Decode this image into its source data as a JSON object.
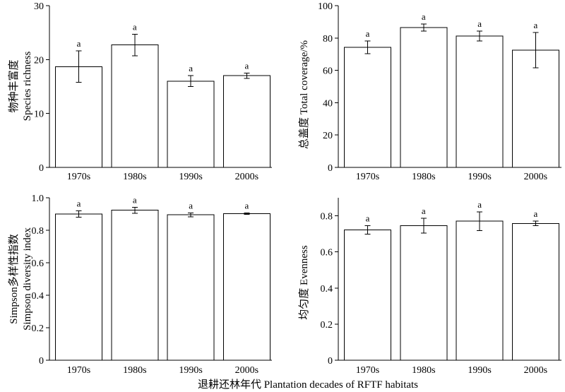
{
  "figure": {
    "xlabel": "退耕还林年代 Plantation decades of RFTF habitats"
  },
  "chart_data": [
    {
      "type": "bar",
      "categories": [
        "1970s",
        "1980s",
        "1990s",
        "2000s"
      ],
      "values": [
        18.7,
        22.7,
        16.0,
        17.0
      ],
      "errors": [
        2.9,
        2.0,
        1.0,
        0.5
      ],
      "letters": [
        "a",
        "a",
        "a",
        "a"
      ],
      "ylabel": [
        "物种丰富度",
        "Species richness"
      ],
      "ylim": [
        0,
        30
      ],
      "ytick_labels": [
        "0",
        "10",
        "20",
        "30"
      ],
      "grid": false,
      "bar_fill": "#ffffff",
      "bar_edge": "#000000"
    },
    {
      "type": "bar",
      "categories": [
        "1970s",
        "1980s",
        "1990s",
        "2000s"
      ],
      "values": [
        74.2,
        86.5,
        81.2,
        72.5
      ],
      "errors": [
        4.0,
        2.2,
        3.0,
        10.9
      ],
      "letters": [
        "a",
        "a",
        "a",
        "a"
      ],
      "ylabel": [
        "总盖度 Total coverage/%"
      ],
      "ylim": [
        0,
        100
      ],
      "ytick_labels": [
        "0",
        "20",
        "40",
        "60",
        "80",
        "100"
      ],
      "grid": false,
      "bar_fill": "#ffffff",
      "bar_edge": "#000000"
    },
    {
      "type": "bar",
      "categories": [
        "1970s",
        "1980s",
        "1990s",
        "2000s"
      ],
      "values": [
        0.9,
        0.923,
        0.895,
        0.902
      ],
      "errors": [
        0.02,
        0.018,
        0.012,
        0.005
      ],
      "letters": [
        "a",
        "a",
        "a",
        "a"
      ],
      "ylabel": [
        "Simpson多样性指数",
        "Simpson diversity index"
      ],
      "ylim": [
        0,
        1.0
      ],
      "ytick_labels": [
        "0",
        "0.2",
        "0.4",
        "0.6",
        "0.8",
        "1.0"
      ],
      "grid": false,
      "bar_fill": "#ffffff",
      "bar_edge": "#000000"
    },
    {
      "type": "bar",
      "categories": [
        "1970s",
        "1980s",
        "1990s",
        "2000s"
      ],
      "values": [
        0.722,
        0.745,
        0.77,
        0.758
      ],
      "errors": [
        0.024,
        0.041,
        0.051,
        0.012
      ],
      "letters": [
        "a",
        "a",
        "a",
        "a"
      ],
      "ylabel": [
        "均匀度 Evenness"
      ],
      "ylim": [
        0,
        0.9
      ],
      "ytick_labels": [
        "0",
        "0.2",
        "0.4",
        "0.6",
        "0.8"
      ],
      "grid": false,
      "bar_fill": "#ffffff",
      "bar_edge": "#000000"
    }
  ]
}
